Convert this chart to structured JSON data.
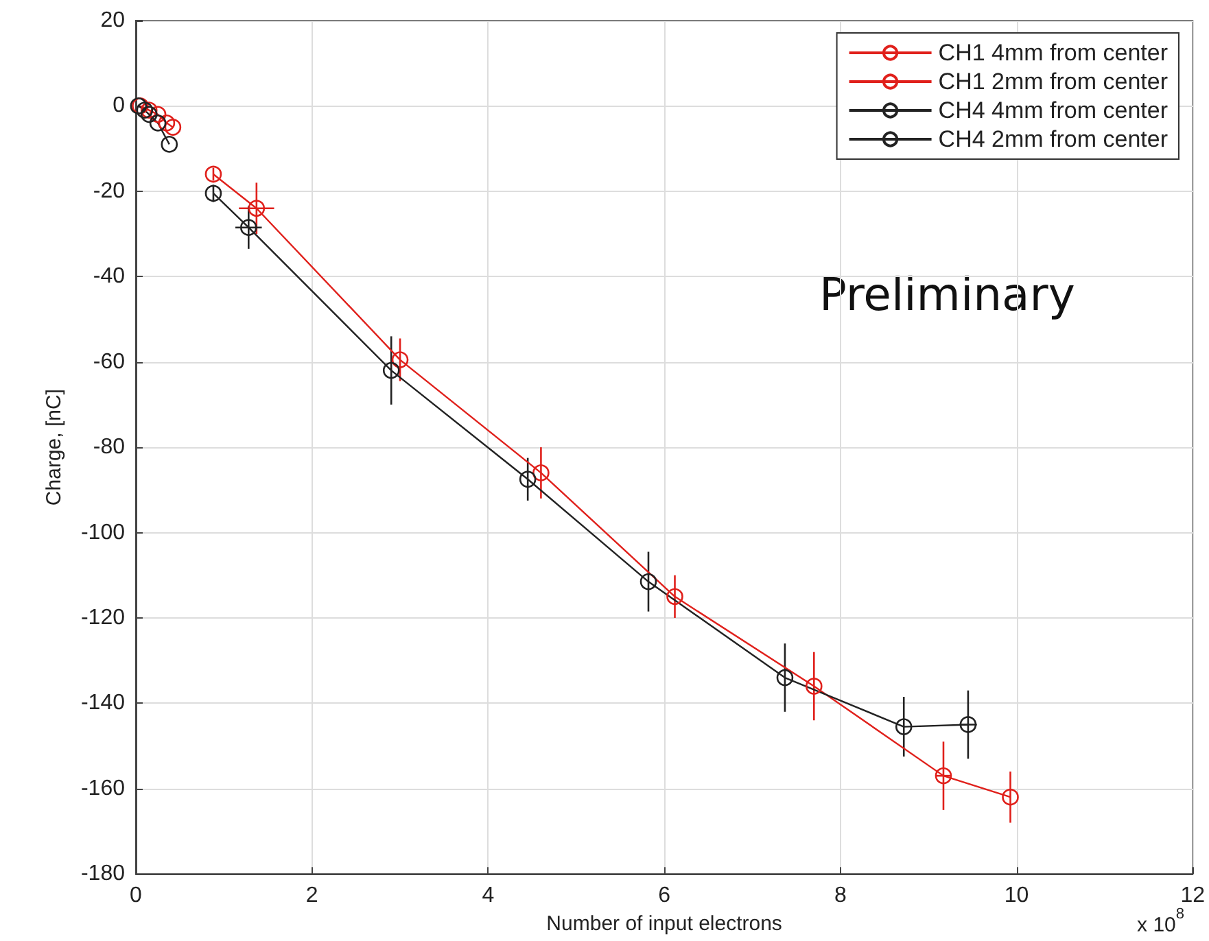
{
  "chart_data": {
    "type": "line",
    "xlabel": "Number of input electrons",
    "ylabel": "Charge, [nC]",
    "annotations": [
      "Preliminary",
      "x 10$^{8}$"
    ],
    "xlim": [
      0,
      12
    ],
    "xticks": [
      0,
      2,
      4,
      6,
      8,
      10,
      12
    ],
    "ylim": [
      -180,
      20
    ],
    "yticks": [
      -180,
      -160,
      -140,
      -120,
      -100,
      -80,
      -60,
      -40,
      -20,
      0,
      20
    ],
    "grid": true,
    "legend": "top right",
    "marker": "circle",
    "line_style": "solid",
    "series": [
      {
        "name": "CH1 4mm from center",
        "color": "#e0201b",
        "x": [
          0.05,
          0.15,
          0.25,
          0.35,
          0.42
        ],
        "values": [
          0,
          -1,
          -2,
          -4,
          -5
        ]
      },
      {
        "name": "CH1 2mm from center",
        "color": "#e0201b",
        "x": [
          0.88,
          1.37,
          3.0,
          4.6,
          6.12,
          7.7,
          9.17,
          9.93
        ],
        "values": [
          -16,
          -24,
          -59.5,
          -86,
          -115,
          -136,
          -157,
          -162
        ],
        "errors": [
          1.5,
          6,
          5,
          6,
          5,
          8,
          8,
          6
        ],
        "xerrors": [
          null,
          0.2,
          null,
          null,
          null,
          null,
          0.08,
          null
        ]
      },
      {
        "name": "CH4 4mm from center",
        "color": "#222222",
        "x": [
          0.03,
          0.1,
          0.15,
          0.25,
          0.38
        ],
        "values": [
          0,
          -1,
          -2,
          -4,
          -9
        ]
      },
      {
        "name": "CH4 2mm from center",
        "color": "#222222",
        "x": [
          0.88,
          1.28,
          2.9,
          4.45,
          5.82,
          7.37,
          8.72,
          9.45
        ],
        "values": [
          -20.5,
          -28.5,
          -62,
          -87.5,
          -111.5,
          -134,
          -145.5,
          -145
        ],
        "errors": [
          2,
          5,
          8,
          5,
          7,
          8,
          7,
          8
        ],
        "xerrors": [
          null,
          0.15,
          null,
          null,
          null,
          null,
          null,
          0.1
        ]
      }
    ]
  }
}
